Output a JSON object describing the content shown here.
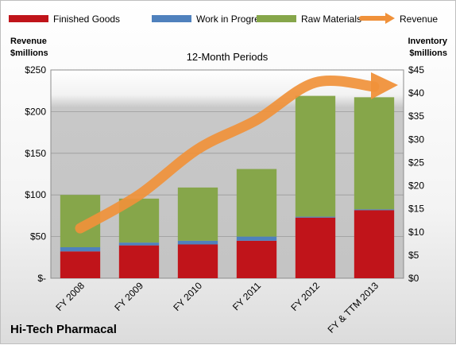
{
  "chart_data": {
    "type": "bar",
    "stacked": true,
    "title": "12-Month Periods",
    "company": "Hi-Tech Pharmacal",
    "categories": [
      "FY 2008",
      "FY 2009",
      "FY 2010",
      "FY 2011",
      "FY 2012",
      "FY & TTM 2013"
    ],
    "series": [
      {
        "name": "Finished Goods",
        "axis": "inventory",
        "color": "#c0141a",
        "values": [
          5.8,
          7.1,
          7.3,
          8.1,
          13.1,
          14.7
        ]
      },
      {
        "name": "Work in Progress",
        "axis": "inventory",
        "color": "#4f81bd",
        "values": [
          0.9,
          0.6,
          0.8,
          0.9,
          0.2,
          0.2
        ]
      },
      {
        "name": "Raw Materials",
        "axis": "inventory",
        "color": "#86a64a",
        "values": [
          11.3,
          9.5,
          11.5,
          14.6,
          26.1,
          24.2
        ]
      },
      {
        "name": "Revenue",
        "axis": "revenue",
        "type": "line",
        "color": "#f0913a",
        "values": [
          60,
          100,
          155,
          190,
          235,
          230
        ]
      }
    ],
    "left_axis": {
      "label_line1": "Revenue",
      "label_line2": "$millions",
      "ylim": [
        0,
        250
      ],
      "ticks": [
        0,
        50,
        100,
        150,
        200,
        250
      ],
      "tick_labels": [
        "$-",
        "$50",
        "$100",
        "$150",
        "$200",
        "$250"
      ]
    },
    "right_axis": {
      "label_line1": "Inventory",
      "label_line2": "$millions",
      "ylim": [
        0,
        45
      ],
      "ticks": [
        0,
        5,
        10,
        15,
        20,
        25,
        30,
        35,
        40,
        45
      ],
      "tick_labels": [
        "$0",
        "$5",
        "$10",
        "$15",
        "$20",
        "$25",
        "$30",
        "$35",
        "$40",
        "$45"
      ]
    },
    "legend_position": "top",
    "grid": true
  }
}
